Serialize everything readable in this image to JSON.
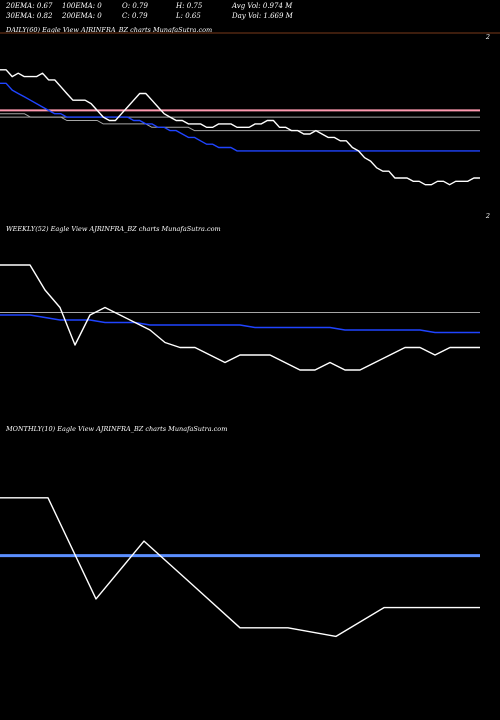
{
  "header": {
    "row1": [
      "20EMA: 0.67",
      "100EMA: 0",
      "O: 0.79",
      "H: 0.75",
      "Avg Vol: 0.974  M"
    ],
    "row2": [
      "30EMA: 0.82",
      "200EMA: 0",
      "C: 0.79",
      "L: 0.65",
      "Day Vol: 1.669 M"
    ]
  },
  "panels": {
    "daily": {
      "label": "DAILY(60) Eagle   View  AJRINFRA_BZ charts MunafaSutra.com",
      "right_label": "2"
    },
    "weekly": {
      "label": "WEEKLY(52) Eagle   View  AJRINFRA_BZ charts MunafaSutra.com",
      "right_label": "2"
    },
    "monthly": {
      "label": "MONTHLY(10) Eagle   View  AJRINFRA_BZ charts MunafaSutra.com"
    }
  },
  "colors": {
    "background": "#000000",
    "price": "#ffffff",
    "ema_blue": "#1f44ff",
    "ema_monthly": "#5b8fff",
    "ema_grey": "#a6a6a6",
    "ema_pink": "#ff9ab0",
    "separator": "#7a3a1a"
  },
  "chart_data": [
    {
      "type": "line",
      "name": "daily",
      "ylim": [
        0.5,
        1.0
      ],
      "series": [
        {
          "role": "price",
          "values": [
            0.9,
            0.9,
            0.88,
            0.89,
            0.88,
            0.88,
            0.88,
            0.89,
            0.87,
            0.87,
            0.85,
            0.83,
            0.81,
            0.81,
            0.81,
            0.8,
            0.78,
            0.76,
            0.75,
            0.75,
            0.77,
            0.79,
            0.81,
            0.83,
            0.83,
            0.81,
            0.79,
            0.77,
            0.76,
            0.75,
            0.75,
            0.74,
            0.74,
            0.74,
            0.73,
            0.73,
            0.74,
            0.74,
            0.74,
            0.73,
            0.73,
            0.73,
            0.74,
            0.74,
            0.75,
            0.75,
            0.73,
            0.73,
            0.72,
            0.72,
            0.71,
            0.71,
            0.72,
            0.71,
            0.7,
            0.7,
            0.69,
            0.69,
            0.67,
            0.66,
            0.64,
            0.63,
            0.61,
            0.6,
            0.6,
            0.58,
            0.58,
            0.58,
            0.57,
            0.57,
            0.56,
            0.56,
            0.57,
            0.57,
            0.56,
            0.57,
            0.57,
            0.57,
            0.58,
            0.58
          ]
        },
        {
          "role": "ema_blue",
          "values": [
            0.86,
            0.86,
            0.84,
            0.83,
            0.82,
            0.81,
            0.8,
            0.79,
            0.78,
            0.77,
            0.77,
            0.76,
            0.76,
            0.76,
            0.76,
            0.76,
            0.76,
            0.76,
            0.76,
            0.76,
            0.76,
            0.76,
            0.75,
            0.75,
            0.74,
            0.74,
            0.73,
            0.73,
            0.72,
            0.72,
            0.71,
            0.7,
            0.7,
            0.69,
            0.68,
            0.68,
            0.67,
            0.67,
            0.67,
            0.66,
            0.66,
            0.66,
            0.66,
            0.66,
            0.66,
            0.66,
            0.66,
            0.66,
            0.66,
            0.66,
            0.66,
            0.66,
            0.66,
            0.66,
            0.66,
            0.66,
            0.66,
            0.66,
            0.66,
            0.66,
            0.66,
            0.66,
            0.66,
            0.66,
            0.66,
            0.66,
            0.66,
            0.66,
            0.66,
            0.66,
            0.66,
            0.66,
            0.66,
            0.66,
            0.66,
            0.66,
            0.66,
            0.66,
            0.66,
            0.66
          ]
        },
        {
          "role": "ema_grey",
          "values": [
            0.77,
            0.77,
            0.77,
            0.77,
            0.77,
            0.76,
            0.76,
            0.76,
            0.76,
            0.76,
            0.76,
            0.75,
            0.75,
            0.75,
            0.75,
            0.75,
            0.75,
            0.74,
            0.74,
            0.74,
            0.74,
            0.74,
            0.74,
            0.74,
            0.74,
            0.73,
            0.73,
            0.73,
            0.73,
            0.73,
            0.73,
            0.73,
            0.72,
            0.72,
            0.72,
            0.72,
            0.72,
            0.72,
            0.72,
            0.72,
            0.72,
            0.72,
            0.72,
            0.72,
            0.72,
            0.72,
            0.72,
            0.72,
            0.72,
            0.72,
            0.72,
            0.72,
            0.72,
            0.72,
            0.72,
            0.72,
            0.72,
            0.72,
            0.72,
            0.72,
            0.72,
            0.72,
            0.72,
            0.72,
            0.72,
            0.72,
            0.72,
            0.72,
            0.72,
            0.72,
            0.72,
            0.72,
            0.72,
            0.72,
            0.72,
            0.72,
            0.72,
            0.72,
            0.72,
            0.72
          ]
        },
        {
          "role": "ema_grey2",
          "values": [
            0.76,
            0.76,
            0.76,
            0.76,
            0.76,
            0.76,
            0.76,
            0.76,
            0.76,
            0.76,
            0.76,
            0.76,
            0.76,
            0.76,
            0.76,
            0.76,
            0.76,
            0.76,
            0.76,
            0.76,
            0.76,
            0.76,
            0.76,
            0.76,
            0.76,
            0.76,
            0.76,
            0.76,
            0.76,
            0.76,
            0.76,
            0.76,
            0.76,
            0.76,
            0.76,
            0.76,
            0.76,
            0.76,
            0.76,
            0.76,
            0.76,
            0.76,
            0.76,
            0.76,
            0.76,
            0.76,
            0.76,
            0.76,
            0.76,
            0.76,
            0.76,
            0.76,
            0.76,
            0.76,
            0.76,
            0.76,
            0.76,
            0.76,
            0.76,
            0.76,
            0.76,
            0.76,
            0.76,
            0.76,
            0.76,
            0.76,
            0.76,
            0.76,
            0.76,
            0.76,
            0.76,
            0.76,
            0.76,
            0.76,
            0.76,
            0.76,
            0.76,
            0.76,
            0.76,
            0.76
          ]
        },
        {
          "role": "ema_pink",
          "values": [
            0.78,
            0.78,
            0.78,
            0.78,
            0.78,
            0.78,
            0.78,
            0.78,
            0.78,
            0.78,
            0.78,
            0.78,
            0.78,
            0.78,
            0.78,
            0.78,
            0.78,
            0.78,
            0.78,
            0.78,
            0.78,
            0.78,
            0.78,
            0.78,
            0.78,
            0.78,
            0.78,
            0.78,
            0.78,
            0.78,
            0.78,
            0.78,
            0.78,
            0.78,
            0.78,
            0.78,
            0.78,
            0.78,
            0.78,
            0.78,
            0.78,
            0.78,
            0.78,
            0.78,
            0.78,
            0.78,
            0.78,
            0.78,
            0.78,
            0.78,
            0.78,
            0.78,
            0.78,
            0.78,
            0.78,
            0.78,
            0.78,
            0.78,
            0.78,
            0.78,
            0.78,
            0.78,
            0.78,
            0.78,
            0.78,
            0.78,
            0.78,
            0.78,
            0.78,
            0.78,
            0.78,
            0.78,
            0.78,
            0.78,
            0.78,
            0.78,
            0.78,
            0.78,
            0.78,
            0.78
          ]
        }
      ]
    },
    {
      "type": "line",
      "name": "weekly",
      "ylim": [
        0.5,
        1.2
      ],
      "series": [
        {
          "role": "price",
          "values": [
            1.1,
            1.1,
            1.1,
            1.0,
            0.93,
            0.78,
            0.9,
            0.93,
            0.9,
            0.87,
            0.84,
            0.79,
            0.77,
            0.77,
            0.74,
            0.71,
            0.74,
            0.74,
            0.74,
            0.71,
            0.68,
            0.68,
            0.71,
            0.68,
            0.68,
            0.71,
            0.74,
            0.77,
            0.77,
            0.74,
            0.77,
            0.77,
            0.77
          ]
        },
        {
          "role": "ema_blue",
          "values": [
            0.9,
            0.9,
            0.9,
            0.89,
            0.88,
            0.88,
            0.88,
            0.87,
            0.87,
            0.87,
            0.86,
            0.86,
            0.86,
            0.86,
            0.86,
            0.86,
            0.86,
            0.85,
            0.85,
            0.85,
            0.85,
            0.85,
            0.85,
            0.84,
            0.84,
            0.84,
            0.84,
            0.84,
            0.84,
            0.83,
            0.83,
            0.83,
            0.83
          ]
        },
        {
          "role": "ema_grey",
          "values": [
            0.91,
            0.91,
            0.91,
            0.91,
            0.91,
            0.91,
            0.91,
            0.91,
            0.91,
            0.91,
            0.91,
            0.91,
            0.91,
            0.91,
            0.91,
            0.91,
            0.91,
            0.91,
            0.91,
            0.91,
            0.91,
            0.91,
            0.91,
            0.91,
            0.91,
            0.91,
            0.91,
            0.91,
            0.91,
            0.91,
            0.91,
            0.91,
            0.91
          ]
        }
      ]
    },
    {
      "type": "line",
      "name": "monthly",
      "ylim": [
        0.5,
        1.4
      ],
      "series": [
        {
          "role": "price",
          "values": [
            1.2,
            1.2,
            0.85,
            1.05,
            0.9,
            0.75,
            0.75,
            0.72,
            0.82,
            0.82,
            0.82
          ]
        },
        {
          "role": "ema_monthly",
          "values": [
            1.0,
            1.0,
            1.0,
            1.0,
            1.0,
            1.0,
            1.0,
            1.0,
            1.0,
            1.0,
            1.0
          ]
        }
      ]
    }
  ]
}
